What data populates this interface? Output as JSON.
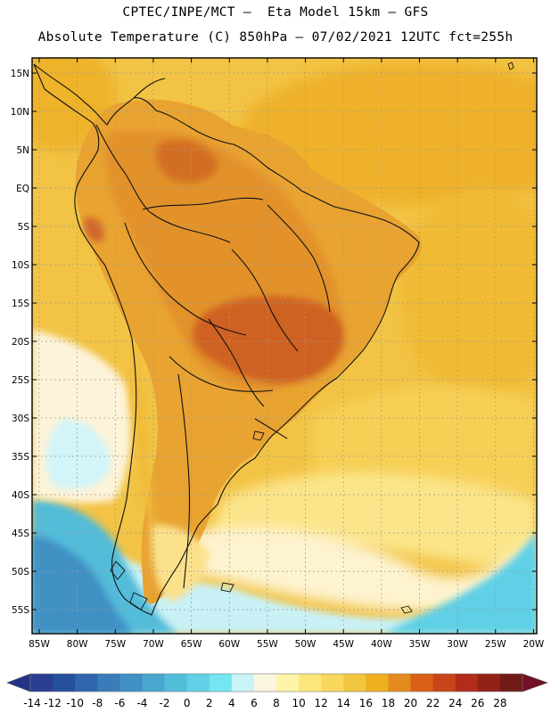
{
  "header": {
    "line1": "CPTEC/INPE/MCT –  Eta Model 15km – GFS",
    "line2": "Absolute Temperature (C) 850hPa – 07/02/2021 12UTC fct=255h"
  },
  "map": {
    "lat_labels": [
      "15N",
      "10N",
      "5N",
      "EQ",
      "5S",
      "10S",
      "15S",
      "20S",
      "25S",
      "30S",
      "35S",
      "40S",
      "45S",
      "50S",
      "55S"
    ],
    "lon_labels": [
      "85W",
      "80W",
      "75W",
      "70W",
      "65W",
      "60W",
      "55W",
      "50W",
      "45W",
      "40W",
      "35W",
      "30W",
      "25W",
      "20W"
    ],
    "lon_range": [
      -85,
      -20
    ],
    "lat_range": [
      -57,
      17
    ],
    "ocean_color": "#f2c344",
    "land_color": "#e3922b",
    "hot_core_color": "#cf6220",
    "cold_color": "#4fc9dd"
  },
  "colorbar": {
    "labels": [
      "-14",
      "-12",
      "-10",
      "-8",
      "-6",
      "-4",
      "-2",
      "0",
      "2",
      "4",
      "6",
      "8",
      "10",
      "12",
      "14",
      "16",
      "18",
      "20",
      "22",
      "24",
      "26",
      "28"
    ],
    "colors": [
      "#2a3f8f",
      "#24509e",
      "#2f66ad",
      "#3a7bb9",
      "#3f90c4",
      "#48a6cf",
      "#52bcd9",
      "#5fd0e6",
      "#74e6f2",
      "#c8f4f8",
      "#fbf6e0",
      "#fff4a8",
      "#fde67a",
      "#f9d75c",
      "#f3c63f",
      "#efb01f",
      "#e58a1e",
      "#da6018",
      "#c9441a",
      "#b12c1a",
      "#922218",
      "#701a18"
    ],
    "low_arrow_color": "#24338a",
    "high_arrow_color": "#750f25"
  }
}
